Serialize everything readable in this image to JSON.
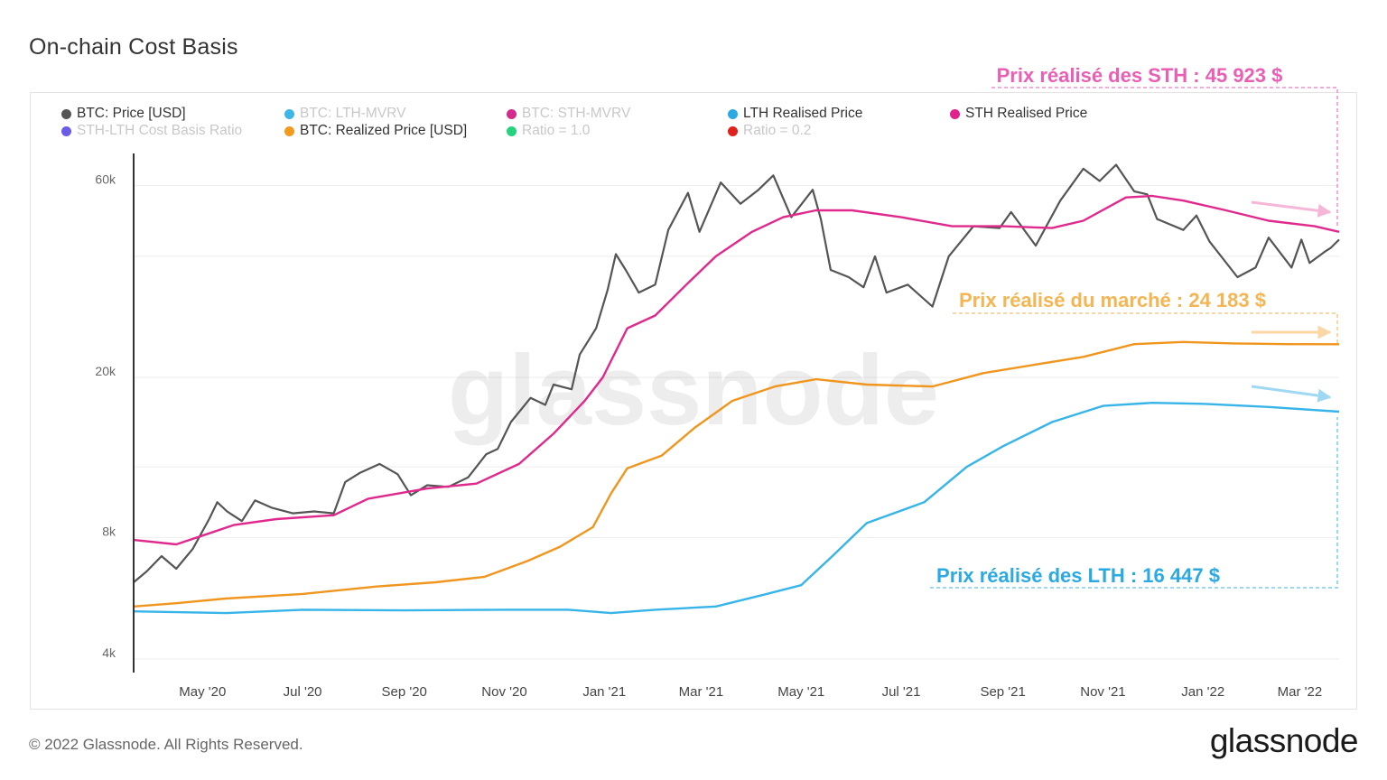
{
  "title": "On-chain Cost Basis",
  "footer": {
    "copyright": "© 2022 Glassnode. All Rights Reserved.",
    "brand": "glassnode"
  },
  "watermark": "glassnode",
  "legend": [
    {
      "label": "BTC: Price [USD]",
      "color": "#555555",
      "active": true
    },
    {
      "label": "BTC: LTH-MVRV",
      "color": "#3fb6e8",
      "active": false
    },
    {
      "label": "BTC: STH-MVRV",
      "color": "#d42a8c",
      "active": false
    },
    {
      "label": "LTH Realised Price",
      "color": "#2ba9e2",
      "active": true
    },
    {
      "label": "STH Realised Price",
      "color": "#e0238a",
      "active": true
    },
    {
      "label": "STH-LTH Cost Basis Ratio",
      "color": "#6b5ce7",
      "active": false
    },
    {
      "label": "BTC: Realized Price [USD]",
      "color": "#f29a1d",
      "active": true
    },
    {
      "label": "Ratio = 1.0",
      "color": "#25d37f",
      "active": false
    },
    {
      "label": "Ratio = 0.2",
      "color": "#e0201a",
      "active": false
    }
  ],
  "annotations": {
    "sth": "Prix réalisé des STH : 45 923 $",
    "market": "Prix réalisé du marché : 24 183 $",
    "lth": "Prix réalisé des LTH : 16 447 $"
  },
  "colors": {
    "price": "#555555",
    "sth": "#e0298c",
    "market": "#f0961e",
    "lth": "#37b4e8",
    "sth_annotation": "#ea5fb4",
    "market_annotation": "#f5b553",
    "lth_annotation": "#2ba9e2",
    "grid": "#eeeeee"
  },
  "chart_data": {
    "type": "line",
    "scale": "log",
    "ylim": [
      3700,
      72000
    ],
    "yticks": [
      {
        "label": "4k",
        "value": 4000
      },
      {
        "label": "8k",
        "value": 8000
      },
      {
        "label": "20k",
        "value": 20000
      },
      {
        "label": "60k",
        "value": 60000
      }
    ],
    "xticks": [
      {
        "label": "May '20",
        "date": "2020-05-01"
      },
      {
        "label": "Jul '20",
        "date": "2020-07-01"
      },
      {
        "label": "Sep '20",
        "date": "2020-09-01"
      },
      {
        "label": "Nov '20",
        "date": "2020-11-01"
      },
      {
        "label": "Jan '21",
        "date": "2021-01-01"
      },
      {
        "label": "Mar '21",
        "date": "2021-03-01"
      },
      {
        "label": "May '21",
        "date": "2021-05-01"
      },
      {
        "label": "Jul '21",
        "date": "2021-07-01"
      },
      {
        "label": "Sep '21",
        "date": "2021-09-01"
      },
      {
        "label": "Nov '21",
        "date": "2021-11-01"
      },
      {
        "label": "Jan '22",
        "date": "2022-01-01"
      },
      {
        "label": "Mar '22",
        "date": "2022-03-01"
      }
    ],
    "xlim": [
      "2020-03-20",
      "2022-03-25"
    ],
    "series": [
      {
        "name": "BTC: Price [USD]",
        "color": "#555555",
        "points": [
          [
            "2020-03-20",
            6200
          ],
          [
            "2020-03-28",
            6600
          ],
          [
            "2020-04-06",
            7200
          ],
          [
            "2020-04-15",
            6700
          ],
          [
            "2020-04-25",
            7500
          ],
          [
            "2020-05-05",
            8900
          ],
          [
            "2020-05-10",
            9800
          ],
          [
            "2020-05-16",
            9300
          ],
          [
            "2020-05-25",
            8800
          ],
          [
            "2020-06-02",
            9900
          ],
          [
            "2020-06-12",
            9500
          ],
          [
            "2020-06-25",
            9200
          ],
          [
            "2020-07-08",
            9300
          ],
          [
            "2020-07-20",
            9200
          ],
          [
            "2020-07-27",
            11000
          ],
          [
            "2020-08-05",
            11600
          ],
          [
            "2020-08-17",
            12200
          ],
          [
            "2020-08-28",
            11500
          ],
          [
            "2020-09-05",
            10200
          ],
          [
            "2020-09-15",
            10800
          ],
          [
            "2020-09-28",
            10700
          ],
          [
            "2020-10-10",
            11300
          ],
          [
            "2020-10-21",
            12900
          ],
          [
            "2020-10-28",
            13300
          ],
          [
            "2020-11-05",
            15500
          ],
          [
            "2020-11-17",
            17800
          ],
          [
            "2020-11-26",
            17100
          ],
          [
            "2020-12-01",
            19200
          ],
          [
            "2020-12-12",
            18700
          ],
          [
            "2020-12-17",
            22800
          ],
          [
            "2020-12-27",
            26500
          ],
          [
            "2021-01-03",
            33000
          ],
          [
            "2021-01-08",
            40500
          ],
          [
            "2021-01-14",
            37000
          ],
          [
            "2021-01-22",
            32500
          ],
          [
            "2021-02-01",
            34000
          ],
          [
            "2021-02-09",
            46500
          ],
          [
            "2021-02-21",
            57500
          ],
          [
            "2021-02-28",
            46000
          ],
          [
            "2021-03-13",
            61000
          ],
          [
            "2021-03-25",
            54000
          ],
          [
            "2021-04-05",
            58500
          ],
          [
            "2021-04-14",
            63500
          ],
          [
            "2021-04-25",
            50000
          ],
          [
            "2021-05-08",
            58500
          ],
          [
            "2021-05-13",
            49500
          ],
          [
            "2021-05-19",
            37000
          ],
          [
            "2021-05-30",
            35500
          ],
          [
            "2021-06-08",
            33500
          ],
          [
            "2021-06-15",
            40000
          ],
          [
            "2021-06-22",
            32500
          ],
          [
            "2021-07-05",
            34000
          ],
          [
            "2021-07-20",
            30000
          ],
          [
            "2021-07-30",
            40000
          ],
          [
            "2021-08-14",
            47500
          ],
          [
            "2021-08-30",
            47000
          ],
          [
            "2021-09-06",
            51500
          ],
          [
            "2021-09-21",
            42500
          ],
          [
            "2021-10-06",
            55000
          ],
          [
            "2021-10-20",
            66000
          ],
          [
            "2021-10-30",
            61500
          ],
          [
            "2021-11-09",
            67500
          ],
          [
            "2021-11-20",
            58000
          ],
          [
            "2021-11-28",
            57000
          ],
          [
            "2021-12-04",
            49500
          ],
          [
            "2021-12-20",
            46500
          ],
          [
            "2021-12-28",
            50500
          ],
          [
            "2022-01-05",
            43500
          ],
          [
            "2022-01-22",
            35500
          ],
          [
            "2022-02-02",
            37500
          ],
          [
            "2022-02-10",
            44500
          ],
          [
            "2022-02-24",
            37500
          ],
          [
            "2022-03-02",
            44000
          ],
          [
            "2022-03-07",
            38500
          ],
          [
            "2022-03-16",
            41000
          ],
          [
            "2022-03-20",
            42000
          ],
          [
            "2022-03-25",
            44000
          ]
        ]
      },
      {
        "name": "STH Realised Price",
        "color": "#e0298c",
        "points": [
          [
            "2020-03-20",
            7900
          ],
          [
            "2020-04-15",
            7700
          ],
          [
            "2020-05-05",
            8200
          ],
          [
            "2020-05-20",
            8600
          ],
          [
            "2020-06-15",
            8900
          ],
          [
            "2020-07-20",
            9100
          ],
          [
            "2020-08-10",
            10000
          ],
          [
            "2020-09-15",
            10600
          ],
          [
            "2020-10-15",
            10900
          ],
          [
            "2020-11-10",
            12200
          ],
          [
            "2020-12-01",
            14500
          ],
          [
            "2020-12-20",
            17500
          ],
          [
            "2020-12-31",
            20000
          ],
          [
            "2021-01-15",
            26500
          ],
          [
            "2021-02-01",
            28500
          ],
          [
            "2021-02-20",
            34000
          ],
          [
            "2021-03-10",
            40000
          ],
          [
            "2021-04-01",
            46000
          ],
          [
            "2021-04-20",
            50000
          ],
          [
            "2021-05-10",
            52000
          ],
          [
            "2021-06-01",
            52000
          ],
          [
            "2021-07-01",
            50000
          ],
          [
            "2021-08-01",
            47500
          ],
          [
            "2021-09-01",
            47500
          ],
          [
            "2021-10-01",
            47000
          ],
          [
            "2021-10-20",
            49000
          ],
          [
            "2021-11-15",
            56000
          ],
          [
            "2021-12-01",
            56500
          ],
          [
            "2021-12-20",
            55000
          ],
          [
            "2022-01-15",
            52000
          ],
          [
            "2022-02-10",
            49000
          ],
          [
            "2022-03-10",
            47500
          ],
          [
            "2022-03-25",
            46000
          ]
        ]
      },
      {
        "name": "BTC: Realized Price [USD]",
        "color": "#f0961e",
        "points": [
          [
            "2020-03-20",
            5400
          ],
          [
            "2020-04-15",
            5500
          ],
          [
            "2020-05-15",
            5650
          ],
          [
            "2020-07-01",
            5800
          ],
          [
            "2020-08-15",
            6050
          ],
          [
            "2020-09-20",
            6200
          ],
          [
            "2020-10-20",
            6400
          ],
          [
            "2020-11-15",
            7000
          ],
          [
            "2020-12-05",
            7600
          ],
          [
            "2020-12-25",
            8500
          ],
          [
            "2021-01-05",
            10300
          ],
          [
            "2021-01-15",
            11900
          ],
          [
            "2021-02-05",
            12800
          ],
          [
            "2021-02-25",
            15000
          ],
          [
            "2021-03-20",
            17500
          ],
          [
            "2021-04-15",
            19000
          ],
          [
            "2021-05-10",
            19800
          ],
          [
            "2021-06-10",
            19200
          ],
          [
            "2021-07-20",
            19000
          ],
          [
            "2021-08-20",
            20500
          ],
          [
            "2021-09-20",
            21500
          ],
          [
            "2021-10-20",
            22500
          ],
          [
            "2021-11-20",
            24200
          ],
          [
            "2021-12-20",
            24500
          ],
          [
            "2022-01-20",
            24300
          ],
          [
            "2022-02-20",
            24200
          ],
          [
            "2022-03-25",
            24183
          ]
        ]
      },
      {
        "name": "LTH Realised Price",
        "color": "#37b4e8",
        "points": [
          [
            "2020-03-20",
            5250
          ],
          [
            "2020-05-15",
            5200
          ],
          [
            "2020-07-01",
            5300
          ],
          [
            "2020-09-01",
            5280
          ],
          [
            "2020-11-01",
            5300
          ],
          [
            "2020-12-10",
            5300
          ],
          [
            "2021-01-05",
            5200
          ],
          [
            "2021-02-01",
            5300
          ],
          [
            "2021-03-10",
            5400
          ],
          [
            "2021-04-10",
            5800
          ],
          [
            "2021-05-01",
            6100
          ],
          [
            "2021-05-20",
            7200
          ],
          [
            "2021-06-10",
            8700
          ],
          [
            "2021-07-15",
            9800
          ],
          [
            "2021-08-10",
            12000
          ],
          [
            "2021-09-01",
            13500
          ],
          [
            "2021-10-01",
            15500
          ],
          [
            "2021-11-01",
            17000
          ],
          [
            "2021-12-01",
            17300
          ],
          [
            "2022-01-01",
            17200
          ],
          [
            "2022-02-10",
            16900
          ],
          [
            "2022-03-25",
            16447
          ]
        ]
      }
    ]
  }
}
